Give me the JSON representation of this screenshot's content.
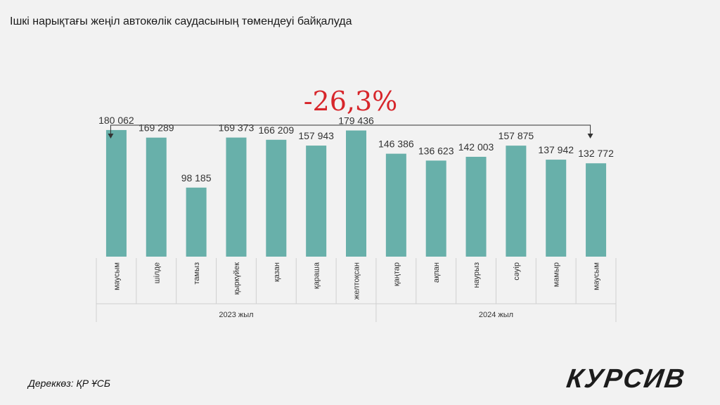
{
  "title": "Ішкі нарықтағы жеңіл автокөлік саудасының төмендеуі байқалуда",
  "change_label": "-26,3%",
  "source": "Дереккөз: ҚР ҰСБ",
  "logo": "КУРСИВ",
  "colors": {
    "bar": "#68b0aa",
    "change": "#d7262b",
    "axis": "#d0d0d0",
    "text": "#333333"
  },
  "chart_data": {
    "type": "bar",
    "title": "Ішкі нарықтағы жеңіл автокөлік саудасының төмендеуі байқалуда",
    "categories": [
      "маусым",
      "шілде",
      "тамыз",
      "қыркүйек",
      "қазан",
      "қараша",
      "желтоқсан",
      "қаңтар",
      "ақпан",
      "наурыз",
      "сәуір",
      "мамыр",
      "маусым"
    ],
    "values": [
      180062,
      169289,
      98185,
      169373,
      166209,
      157943,
      179436,
      146386,
      136623,
      142003,
      157875,
      137942,
      132772
    ],
    "value_labels": [
      "180 062",
      "169 289",
      "98 185",
      "169 373",
      "166 209",
      "157 943",
      "179 436",
      "146 386",
      "136 623",
      "142 003",
      "157 875",
      "137 942",
      "132 772"
    ],
    "groups": [
      {
        "label": "2023 жыл",
        "count": 7
      },
      {
        "label": "2024 жыл",
        "count": 6
      }
    ],
    "ylim": [
      0,
      200000
    ],
    "annotation": "-26,3%",
    "grid": false,
    "legend": "none"
  }
}
